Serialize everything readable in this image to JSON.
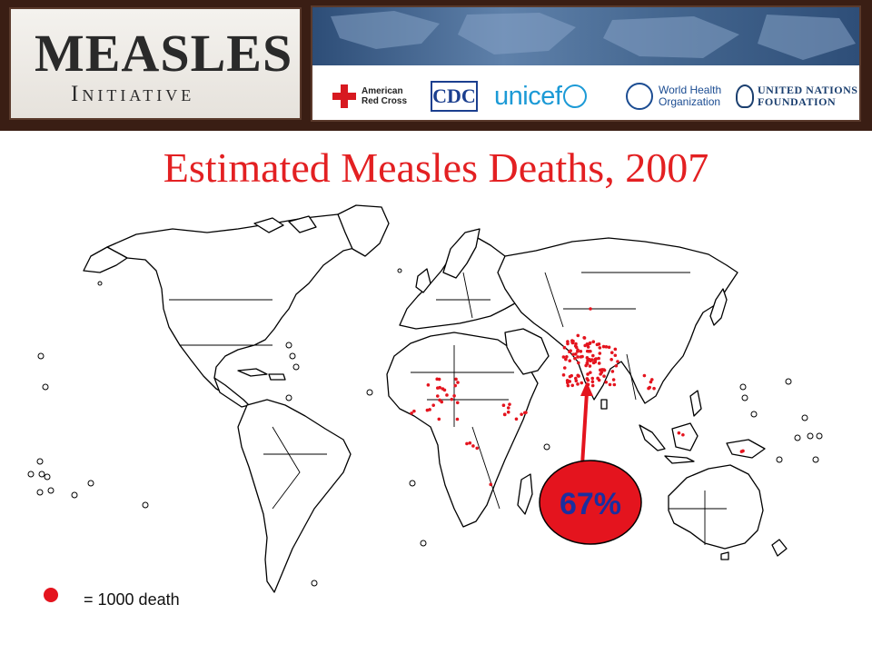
{
  "header": {
    "logo_title": "MEASLES",
    "logo_subtitle": "Initiative",
    "partners": [
      {
        "name": "American Red Cross",
        "line1": "American",
        "line2": "Red Cross"
      },
      {
        "name": "CDC",
        "text": "CDC"
      },
      {
        "name": "unicef",
        "text": "unicef"
      },
      {
        "name": "World Health Organization",
        "line1": "World Health",
        "line2": "Organization"
      },
      {
        "name": "United Nations Foundation",
        "line1": "UNITED NATIONS",
        "line2": "FOUNDATION"
      }
    ]
  },
  "title": "Estimated Measles Deaths, 2007",
  "map": {
    "dot_color": "#e4141e",
    "callout": {
      "label": "67%",
      "fill": "#e4141e",
      "text_color": "#1a2fa0"
    },
    "arrow_color": "#e4141e",
    "legend": {
      "dot_color": "#e4141e",
      "text": "= 1000 death"
    }
  },
  "colors": {
    "banner": "#3a1e14",
    "title": "#e32022"
  }
}
